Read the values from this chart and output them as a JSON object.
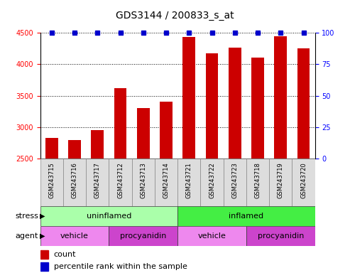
{
  "title": "GDS3144 / 200833_s_at",
  "samples": [
    "GSM243715",
    "GSM243716",
    "GSM243717",
    "GSM243712",
    "GSM243713",
    "GSM243714",
    "GSM243721",
    "GSM243722",
    "GSM243723",
    "GSM243718",
    "GSM243719",
    "GSM243720"
  ],
  "counts": [
    2830,
    2790,
    2950,
    3620,
    3300,
    3400,
    4430,
    4170,
    4260,
    4110,
    4440,
    4250
  ],
  "percentile_ranks": [
    100,
    100,
    100,
    100,
    100,
    100,
    100,
    100,
    100,
    100,
    100,
    100
  ],
  "bar_color": "#cc0000",
  "dot_color": "#0000cc",
  "ylim_left": [
    2500,
    4500
  ],
  "ylim_right": [
    0,
    100
  ],
  "yticks_left": [
    2500,
    3000,
    3500,
    4000,
    4500
  ],
  "yticks_right": [
    0,
    25,
    50,
    75,
    100
  ],
  "stress_groups": [
    {
      "label": "uninflamed",
      "start": 0,
      "end": 6,
      "color": "#aaffaa"
    },
    {
      "label": "inflamed",
      "start": 6,
      "end": 12,
      "color": "#44ee44"
    }
  ],
  "agent_groups": [
    {
      "label": "vehicle",
      "start": 0,
      "end": 3,
      "color": "#ee88ee"
    },
    {
      "label": "procyanidin",
      "start": 3,
      "end": 6,
      "color": "#cc44cc"
    },
    {
      "label": "vehicle",
      "start": 6,
      "end": 9,
      "color": "#ee88ee"
    },
    {
      "label": "procyanidin",
      "start": 9,
      "end": 12,
      "color": "#cc44cc"
    }
  ],
  "legend_count_color": "#cc0000",
  "legend_rank_color": "#0000cc",
  "tick_fontsize": 7,
  "sample_fontsize": 6,
  "annot_fontsize": 8,
  "bar_width": 0.55,
  "cell_color": "#dddddd",
  "background_color": "#ffffff",
  "title_fontsize": 10
}
